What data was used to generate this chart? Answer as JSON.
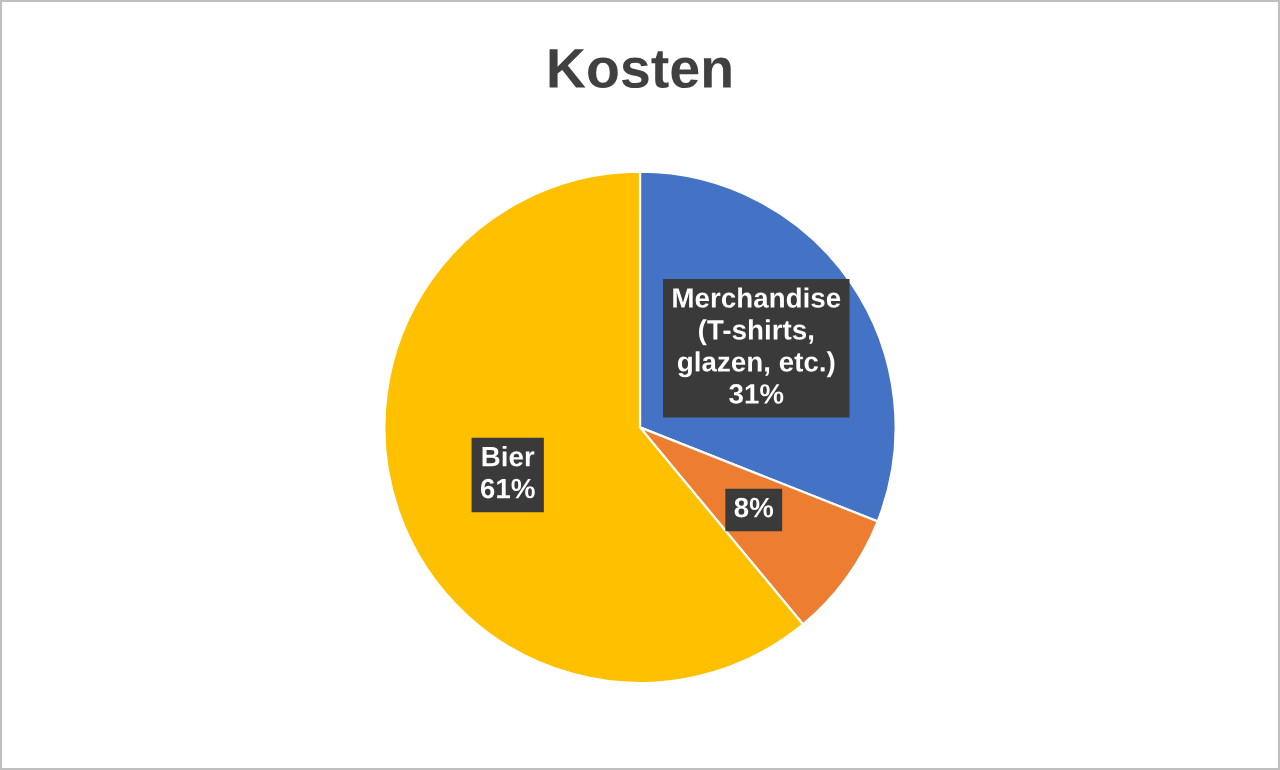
{
  "chart_data": {
    "type": "pie",
    "title": "Kosten",
    "categories": [
      "Merchandise\n(T-shirts,\nglazen, etc.)",
      null,
      "Bier"
    ],
    "values": [
      31,
      8,
      61
    ],
    "colors": [
      "#4472c4",
      "#ed7d31",
      "#ffc000"
    ],
    "value_labels": [
      "31%",
      "8%",
      "61%"
    ]
  }
}
